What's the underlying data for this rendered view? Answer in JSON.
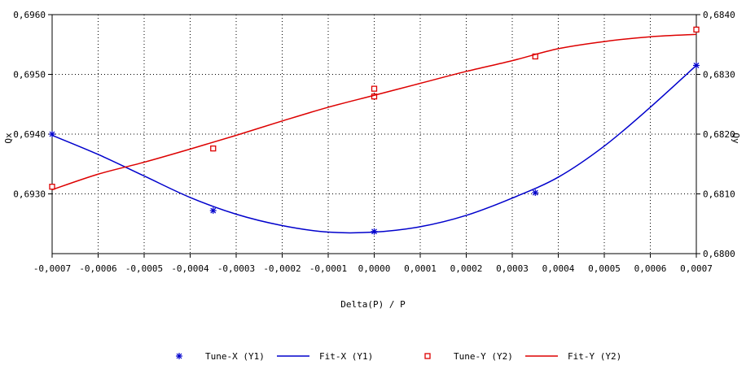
{
  "chart_data": {
    "type": "line",
    "title": "",
    "xlabel": "Delta(P) / P",
    "ylabel_left": "Qx",
    "ylabel_right": "Qy",
    "xlim": [
      -0.0007,
      0.0007
    ],
    "ylim_left": [
      0.692,
      0.696
    ],
    "ylim_right": [
      0.68,
      0.684
    ],
    "x_ticks": [
      "-0,0007",
      "-0,0006",
      "-0,0005",
      "-0,0004",
      "-0,0003",
      "-0,0002",
      "-0,0001",
      "0,0000",
      "0,0001",
      "0,0002",
      "0,0003",
      "0,0004",
      "0,0005",
      "0,0006",
      "0,0007"
    ],
    "y_left_ticks": [
      "0,6930",
      "0,6940",
      "0,6950",
      "0,6960"
    ],
    "y_right_ticks": [
      "0,6800",
      "0,6810",
      "0,6820",
      "0,6830",
      "0,6840"
    ],
    "grid": true,
    "legend_placement": "bottom-center",
    "series": [
      {
        "name": "Tune-X (Y1)",
        "kind": "points",
        "marker": "star",
        "axis": "left",
        "color": "#0000cc",
        "x": [
          -0.0007,
          -0.00035,
          0.0,
          0.00035,
          0.0007
        ],
        "y": [
          0.694,
          0.69272,
          0.69237,
          0.69302,
          0.69515
        ]
      },
      {
        "name": "Fit-X (Y1)",
        "kind": "line",
        "axis": "left",
        "color": "#0000cc",
        "x": [
          -0.0007,
          -0.0006,
          -0.0005,
          -0.0004,
          -0.0003,
          -0.0002,
          -0.0001,
          0.0,
          0.0001,
          0.0002,
          0.0003,
          0.0004,
          0.0005,
          0.0006,
          0.0007
        ],
        "y": [
          0.69398,
          0.69366,
          0.6933,
          0.69294,
          0.69266,
          0.69247,
          0.69236,
          0.69236,
          0.69245,
          0.69264,
          0.69293,
          0.69328,
          0.6938,
          0.69445,
          0.69515
        ]
      },
      {
        "name": "Tune-Y (Y2)",
        "kind": "points",
        "marker": "square",
        "axis": "right",
        "color": "#dd0000",
        "x": [
          -0.0007,
          -0.00035,
          0.0,
          0.0,
          0.00035,
          0.0007
        ],
        "y": [
          0.68112,
          0.68176,
          0.68263,
          0.68276,
          0.6833,
          0.68375
        ]
      },
      {
        "name": "Fit-Y (Y2)",
        "kind": "line",
        "axis": "right",
        "color": "#dd0000",
        "x": [
          -0.0007,
          -0.0006,
          -0.0005,
          -0.0004,
          -0.0003,
          -0.0002,
          -0.0001,
          0.0,
          0.0001,
          0.0002,
          0.0003,
          0.0004,
          0.0005,
          0.0006,
          0.0007
        ],
        "y": [
          0.68107,
          0.68133,
          0.68153,
          0.68175,
          0.68198,
          0.68222,
          0.68245,
          0.68265,
          0.68285,
          0.68305,
          0.68323,
          0.68343,
          0.68355,
          0.68363,
          0.68367
        ]
      }
    ]
  }
}
